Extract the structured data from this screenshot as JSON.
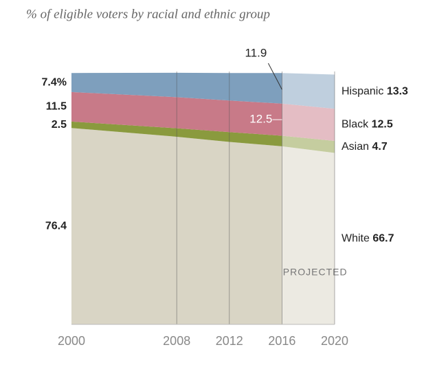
{
  "chart_data": {
    "type": "stacked_area",
    "title": "% of eligible voters by racial and ethnic group",
    "x": [
      2000,
      2008,
      2012,
      2016,
      2020
    ],
    "xlim": [
      2000,
      2020
    ],
    "xticks": [
      2000,
      2008,
      2012,
      2016,
      2020
    ],
    "ylim": [
      0,
      100
    ],
    "series": [
      {
        "name": "White",
        "color": "#d9d5c5",
        "values": [
          76.4,
          73.0,
          71.0,
          69.3,
          66.7
        ]
      },
      {
        "name": "Asian",
        "color": "#8a9a3e",
        "values": [
          2.5,
          3.3,
          3.8,
          4.1,
          4.7
        ]
      },
      {
        "name": "Black",
        "color": "#c87a88",
        "values": [
          11.5,
          12.1,
          12.3,
          12.5,
          12.5
        ]
      },
      {
        "name": "Hispanic",
        "color": "#7e9fbd",
        "values": [
          7.4,
          9.5,
          10.7,
          11.9,
          13.3
        ],
        "value_labels": [
          "7.4%",
          null,
          null,
          null,
          null
        ]
      }
    ],
    "projected": {
      "label": "PROJECTED",
      "from": 2016
    }
  }
}
